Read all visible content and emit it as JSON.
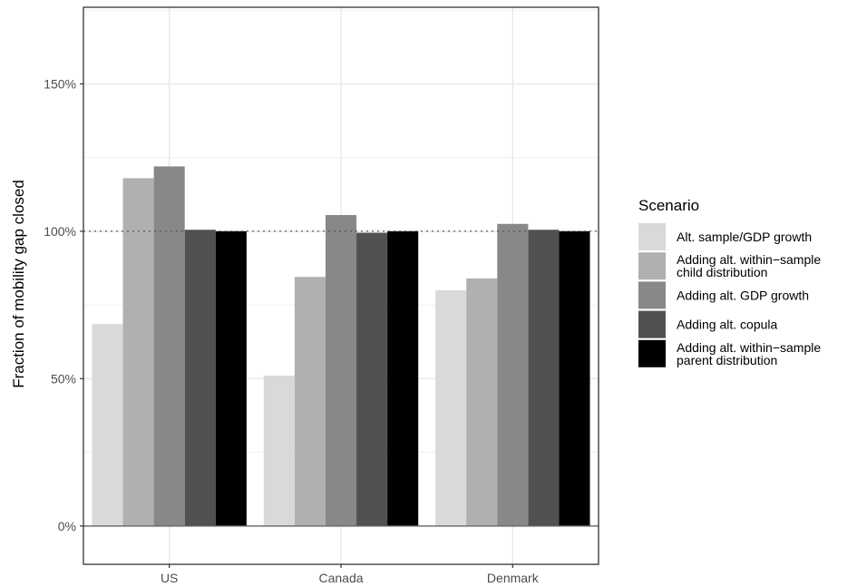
{
  "chart_data": {
    "type": "bar",
    "categories": [
      "US",
      "Canada",
      "Denmark"
    ],
    "series": [
      {
        "name": "Alt. sample/GDP growth",
        "values": [
          68.5,
          51,
          80
        ],
        "color": "#d9d9d9"
      },
      {
        "name": "Adding alt. within−sample child distribution",
        "values": [
          118,
          84.5,
          84
        ],
        "color": "#b0b0b0"
      },
      {
        "name": "Adding alt. GDP growth",
        "values": [
          122,
          105.5,
          102.5
        ],
        "color": "#888888"
      },
      {
        "name": "Adding alt. copula",
        "values": [
          100.5,
          99.5,
          100.5
        ],
        "color": "#515151"
      },
      {
        "name": "Adding alt. within−sample parent distribution",
        "values": [
          100,
          100,
          100
        ],
        "color": "#000000"
      }
    ],
    "xlabel": "",
    "ylabel": "Fraction of mobility gap closed",
    "ylim": [
      -13,
      176
    ],
    "yticks": [
      0,
      50,
      100,
      150
    ],
    "ytick_labels": [
      "0%",
      "50%",
      "100%",
      "150%"
    ],
    "reference_line": 100,
    "legend_title": "Scenario",
    "legend_labels": [
      [
        "Alt. sample/GDP growth"
      ],
      [
        "Adding alt. within−sample",
        "child distribution"
      ],
      [
        "Adding alt. GDP growth"
      ],
      [
        "Adding alt. copula"
      ],
      [
        "Adding alt. within−sample",
        "parent distribution"
      ]
    ],
    "legend_position": "right",
    "grid": true
  }
}
